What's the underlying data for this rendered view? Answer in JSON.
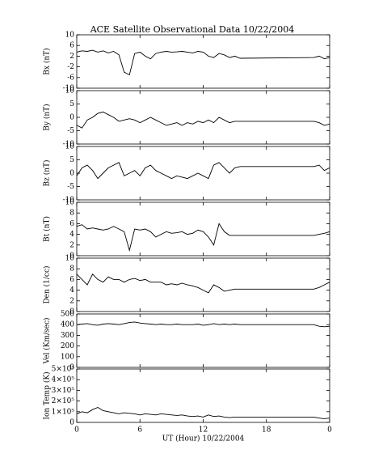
{
  "chart_data": [
    {
      "type": "line",
      "title": "ACE Satellite Observational Data   10/22/2004",
      "ylabel": "Bx (nT)",
      "color": "#000000",
      "x": [
        0,
        0.5,
        1,
        1.5,
        2,
        2.5,
        3,
        3.5,
        4,
        4.5,
        5,
        5.5,
        6,
        6.5,
        7,
        7.5,
        8,
        8.5,
        9,
        9.5,
        10,
        10.5,
        11,
        11.5,
        12,
        12.5,
        13,
        13.5,
        14,
        14.5,
        15,
        15.5,
        22.5,
        23,
        23.5,
        24
      ],
      "values": [
        3.5,
        4,
        3.8,
        4.2,
        3.5,
        4,
        3.2,
        3.8,
        2.5,
        -4,
        -5,
        3,
        3.5,
        2,
        1,
        3,
        3.5,
        3.8,
        3.5,
        3.6,
        3.8,
        3.5,
        3.2,
        3.8,
        3.5,
        2,
        1.5,
        3,
        2.5,
        1.5,
        2,
        1.2,
        1.5,
        2,
        1,
        1.5
      ],
      "xlim": [
        0,
        24
      ],
      "xticks": [
        0,
        6,
        12,
        18,
        24
      ],
      "ylim": [
        -10,
        10
      ],
      "yticks": [
        -10,
        -6,
        -2,
        2,
        6,
        10
      ]
    },
    {
      "type": "line",
      "ylabel": "By (nT)",
      "color": "#000000",
      "x": [
        0,
        0.5,
        1,
        1.5,
        2,
        2.5,
        3,
        3.5,
        4,
        4.5,
        5,
        5.5,
        6,
        6.5,
        7,
        7.5,
        8,
        8.5,
        9,
        9.5,
        10,
        10.5,
        11,
        11.5,
        12,
        12.5,
        13,
        13.5,
        14,
        14.5,
        15,
        15.5,
        22.5,
        23,
        23.5,
        24
      ],
      "values": [
        -3,
        -4,
        -1,
        0,
        1.5,
        2,
        1,
        0,
        -1.5,
        -1,
        -0.5,
        -1,
        -2,
        -1,
        0,
        -1,
        -2,
        -3,
        -2.5,
        -2,
        -3,
        -2,
        -2.5,
        -1.5,
        -2,
        -1,
        -2,
        0,
        -1,
        -2,
        -1.5,
        -1.5,
        -1.5,
        -2,
        -3,
        -2.5
      ],
      "xlim": [
        0,
        24
      ],
      "xticks": [
        0,
        6,
        12,
        18,
        24
      ],
      "ylim": [
        -10,
        10
      ],
      "yticks": [
        -10,
        -5,
        0,
        5,
        10
      ]
    },
    {
      "type": "line",
      "ylabel": "Bz (nT)",
      "color": "#000000",
      "x": [
        0,
        0.5,
        1,
        1.5,
        2,
        2.5,
        3,
        3.5,
        4,
        4.5,
        5,
        5.5,
        6,
        6.5,
        7,
        7.5,
        8,
        8.5,
        9,
        9.5,
        10,
        10.5,
        11,
        11.5,
        12,
        12.5,
        13,
        13.5,
        14,
        14.5,
        15,
        15.5,
        22.5,
        23,
        23.5,
        24
      ],
      "values": [
        -1,
        2,
        3,
        1,
        -2,
        0,
        2,
        3,
        4,
        -1,
        0,
        1,
        -1,
        2,
        3,
        1,
        0,
        -1,
        -2,
        -1,
        -1.5,
        -2,
        -1,
        0,
        -1,
        -2,
        3,
        4,
        2,
        0,
        2,
        2.5,
        2.5,
        3,
        1,
        2
      ],
      "xlim": [
        0,
        24
      ],
      "xticks": [
        0,
        6,
        12,
        18,
        24
      ],
      "ylim": [
        -10,
        10
      ],
      "yticks": [
        -10,
        -5,
        0,
        5,
        10
      ]
    },
    {
      "type": "line",
      "ylabel": "Bt (nT)",
      "color": "#000000",
      "x": [
        0,
        0.5,
        1,
        1.5,
        2,
        2.5,
        3,
        3.5,
        4,
        4.5,
        5,
        5.5,
        6,
        6.5,
        7,
        7.5,
        8,
        8.5,
        9,
        9.5,
        10,
        10.5,
        11,
        11.5,
        12,
        12.5,
        13,
        13.5,
        14,
        14.5,
        15,
        15.5,
        22.5,
        23,
        23.5,
        24
      ],
      "values": [
        5.5,
        5.8,
        5,
        5.2,
        5,
        4.8,
        5,
        5.5,
        5,
        4.5,
        1,
        5,
        4.8,
        5,
        4.5,
        3.5,
        4,
        4.5,
        4.2,
        4.3,
        4.5,
        4,
        4.2,
        4.8,
        4.5,
        3.5,
        2,
        6,
        4.5,
        3.8,
        3.8,
        3.8,
        3.8,
        4,
        4.2,
        4.5
      ],
      "xlim": [
        0,
        24
      ],
      "xticks": [
        0,
        6,
        12,
        18,
        24
      ],
      "ylim": [
        0,
        10
      ],
      "yticks": [
        0,
        2,
        4,
        6,
        8,
        10
      ]
    },
    {
      "type": "line",
      "ylabel": "Den (1/cc)",
      "color": "#000000",
      "x": [
        0,
        0.5,
        1,
        1.5,
        2,
        2.5,
        3,
        3.5,
        4,
        4.5,
        5,
        5.5,
        6,
        6.5,
        7,
        7.5,
        8,
        8.5,
        9,
        9.5,
        10,
        10.5,
        11,
        11.5,
        12,
        12.5,
        13,
        13.5,
        14,
        14.5,
        15,
        15.5,
        22.5,
        23,
        23.5,
        24
      ],
      "values": [
        7,
        6,
        5,
        7,
        6,
        5.5,
        6.5,
        6,
        6,
        5.5,
        6,
        6.2,
        5.8,
        6,
        5.5,
        5.5,
        5.5,
        5,
        5.2,
        5,
        5.3,
        5,
        4.8,
        4.5,
        4,
        3.5,
        5,
        4.5,
        3.8,
        4,
        4.2,
        4.2,
        4.2,
        4.5,
        5,
        5.5
      ],
      "xlim": [
        0,
        24
      ],
      "xticks": [
        0,
        6,
        12,
        18,
        24
      ],
      "ylim": [
        0,
        10
      ],
      "yticks": [
        0,
        2,
        4,
        6,
        8,
        10
      ]
    },
    {
      "type": "line",
      "ylabel": "Vel (Km/sec)",
      "color": "#000000",
      "x": [
        0,
        0.5,
        1,
        1.5,
        2,
        2.5,
        3,
        3.5,
        4,
        4.5,
        5,
        5.5,
        6,
        6.5,
        7,
        7.5,
        8,
        8.5,
        9,
        9.5,
        10,
        10.5,
        11,
        11.5,
        12,
        12.5,
        13,
        13.5,
        14,
        14.5,
        15,
        15.5,
        22.5,
        23,
        23.5,
        24
      ],
      "values": [
        400,
        405,
        410,
        400,
        395,
        405,
        410,
        405,
        400,
        410,
        420,
        425,
        415,
        410,
        405,
        400,
        405,
        400,
        400,
        405,
        400,
        400,
        400,
        405,
        395,
        400,
        410,
        400,
        405,
        400,
        405,
        400,
        400,
        385,
        380,
        385
      ],
      "xlim": [
        0,
        24
      ],
      "xticks": [
        0,
        6,
        12,
        18,
        24
      ],
      "ylim": [
        0,
        500
      ],
      "yticks": [
        0,
        100,
        200,
        300,
        400,
        500
      ]
    },
    {
      "type": "line",
      "ylabel": "Ion Temp (K)",
      "xlabel": "UT (Hour)   10/22/2004",
      "color": "#000000",
      "x": [
        0,
        0.5,
        1,
        1.5,
        2,
        2.5,
        3,
        3.5,
        4,
        4.5,
        5,
        5.5,
        6,
        6.5,
        7,
        7.5,
        8,
        8.5,
        9,
        9.5,
        10,
        10.5,
        11,
        11.5,
        12,
        12.5,
        13,
        13.5,
        14,
        14.5,
        15,
        15.5,
        22.5,
        23,
        23.5,
        24
      ],
      "values": [
        80000,
        100000,
        90000,
        120000,
        140000,
        110000,
        100000,
        90000,
        80000,
        90000,
        85000,
        80000,
        70000,
        80000,
        75000,
        70000,
        80000,
        75000,
        70000,
        65000,
        70000,
        60000,
        55000,
        60000,
        50000,
        70000,
        55000,
        60000,
        50000,
        45000,
        50000,
        50000,
        50000,
        40000,
        35000,
        40000
      ],
      "xlim": [
        0,
        24
      ],
      "xticks": [
        0,
        6,
        12,
        18,
        {
          "value": 24,
          "label": "0"
        }
      ],
      "ylim": [
        0,
        500000
      ],
      "yticks": [
        0,
        {
          "value": 100000,
          "label": "1×10⁵"
        },
        {
          "value": 200000,
          "label": "2×10⁵"
        },
        {
          "value": 300000,
          "label": "3×10⁵"
        },
        {
          "value": 400000,
          "label": "4×10⁵"
        },
        {
          "value": 500000,
          "label": "5×10⁵"
        }
      ]
    }
  ]
}
